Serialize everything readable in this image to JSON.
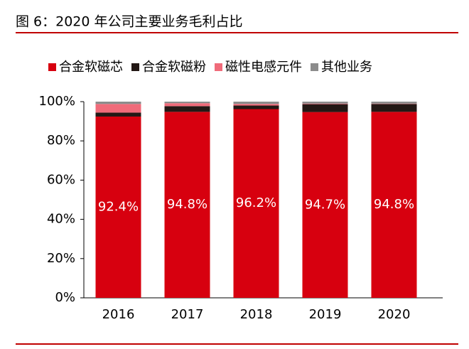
{
  "chart_data": {
    "type": "stacked_bar",
    "title": "图 6：2020 年公司主要业务毛利占比",
    "categories": [
      "2016",
      "2017",
      "2018",
      "2019",
      "2020"
    ],
    "series": [
      {
        "name": "合金软磁芯",
        "color": "#d7000f",
        "values": [
          92.4,
          94.8,
          96.2,
          94.7,
          94.8
        ],
        "value_labels": [
          "92.4%",
          "94.8%",
          "96.2%",
          "94.7%",
          "94.8%"
        ]
      },
      {
        "name": "合金软磁粉",
        "color": "#231815",
        "values": [
          2.0,
          2.9,
          1.8,
          4.0,
          4.0
        ]
      },
      {
        "name": "磁性电感元件",
        "color": "#f06b7a",
        "values": [
          4.4,
          1.5,
          0.8,
          0.3,
          0.2
        ]
      },
      {
        "name": "其他业务",
        "color": "#8c8c8c",
        "values": [
          1.2,
          0.8,
          1.2,
          1.0,
          1.0
        ]
      }
    ],
    "ylim": [
      0,
      100
    ],
    "yticks": [
      {
        "value": 0,
        "label": "0%"
      },
      {
        "value": 20,
        "label": "20%"
      },
      {
        "value": 40,
        "label": "40%"
      },
      {
        "value": 60,
        "label": "60%"
      },
      {
        "value": 80,
        "label": "80%"
      },
      {
        "value": 100,
        "label": "100%"
      }
    ],
    "legend": "top"
  }
}
